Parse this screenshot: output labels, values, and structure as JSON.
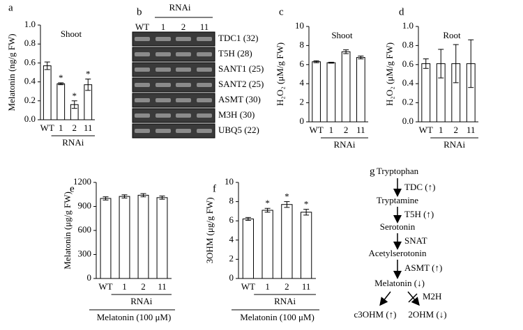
{
  "chart_data": [
    {
      "type": "bar",
      "panel_label": "a",
      "title": "Shoot",
      "ylabel": "Melatonin (ng/g FW)",
      "categories": [
        "WT",
        "1",
        "2",
        "11"
      ],
      "values": [
        0.57,
        0.38,
        0.16,
        0.37
      ],
      "errors": [
        0.04,
        0.01,
        0.04,
        0.06
      ],
      "significance": [
        null,
        "*",
        "*",
        "*"
      ],
      "group_label": "RNAi",
      "ylim": [
        0,
        1
      ],
      "yticks": [
        {
          "value": 0,
          "label": "0.0"
        },
        0.2,
        0.4,
        0.6,
        0.8,
        {
          "value": 1,
          "label": "1.0"
        }
      ]
    },
    {
      "type": "bar",
      "panel_label": "c",
      "title": "Shoot",
      "ylabel": "H₂O₂ (μM/g FW)",
      "categories": [
        "WT",
        "1",
        "2",
        "11"
      ],
      "values": [
        6.3,
        6.2,
        7.35,
        6.75
      ],
      "errors": [
        0.1,
        0.05,
        0.2,
        0.15
      ],
      "group_label": "RNAi",
      "ylim": [
        0,
        10
      ],
      "yticks": [
        0,
        2,
        4,
        6,
        8,
        10
      ]
    },
    {
      "type": "bar",
      "panel_label": "d",
      "title": "Root",
      "ylabel": "H₂O₂ (μM/g FW)",
      "categories": [
        "WT",
        "1",
        "2",
        "11"
      ],
      "values": [
        0.61,
        0.61,
        0.61,
        0.61
      ],
      "errors": [
        0.05,
        0.15,
        0.2,
        0.25
      ],
      "group_label": "RNAi",
      "ylim": [
        0,
        1
      ],
      "yticks": [
        {
          "value": 0,
          "label": "0.0"
        },
        0.2,
        0.4,
        0.6,
        0.8,
        {
          "value": 1,
          "label": "1.0"
        }
      ]
    },
    {
      "type": "bar",
      "panel_label": "e",
      "ylabel": "Melatonin (μg/g FW)",
      "categories": [
        "WT",
        "1",
        "2",
        "11"
      ],
      "values": [
        1000,
        1025,
        1040,
        1010
      ],
      "errors": [
        20,
        20,
        20,
        20
      ],
      "group_label": "RNAi",
      "treatment_label": "Melatonin (100 μM)",
      "ylim": [
        0,
        1200
      ],
      "yticks": [
        0,
        300,
        600,
        900,
        1200
      ]
    },
    {
      "type": "bar",
      "panel_label": "f",
      "ylabel": "3OHM (μg/g FW)",
      "categories": [
        "WT",
        "1",
        "2",
        "11"
      ],
      "values": [
        6.2,
        7.1,
        7.7,
        6.9
      ],
      "errors": [
        0.15,
        0.2,
        0.3,
        0.3
      ],
      "significance": [
        null,
        "*",
        "*",
        "*"
      ],
      "group_label": "RNAi",
      "treatment_label": "Melatonin (100 μM)",
      "ylim": [
        0,
        10
      ],
      "yticks": [
        0,
        2,
        4,
        6,
        8,
        10
      ]
    }
  ],
  "gel": {
    "panel_label": "b",
    "group_label": "RNAi",
    "lanes": [
      "WT",
      "1",
      "2",
      "11"
    ],
    "genes": [
      "TDC1 (32)",
      "T5H (28)",
      "SANT1 (25)",
      "SANT2 (25)",
      "ASMT (30)",
      "M3H (30)",
      "UBQ5 (22)"
    ]
  },
  "pathway": {
    "panel_label": "g",
    "nodes": [
      "Tryptophan",
      "Tryptamine",
      "Serotonin",
      "Acetylserotonin",
      "Melatonin (↓)",
      "c3OHM (↑)",
      "2OHM (↓)"
    ],
    "enzymes": [
      "TDC (↑)",
      "T5H (↑)",
      "SNAT",
      "ASMT (↑)",
      "M2H"
    ]
  }
}
